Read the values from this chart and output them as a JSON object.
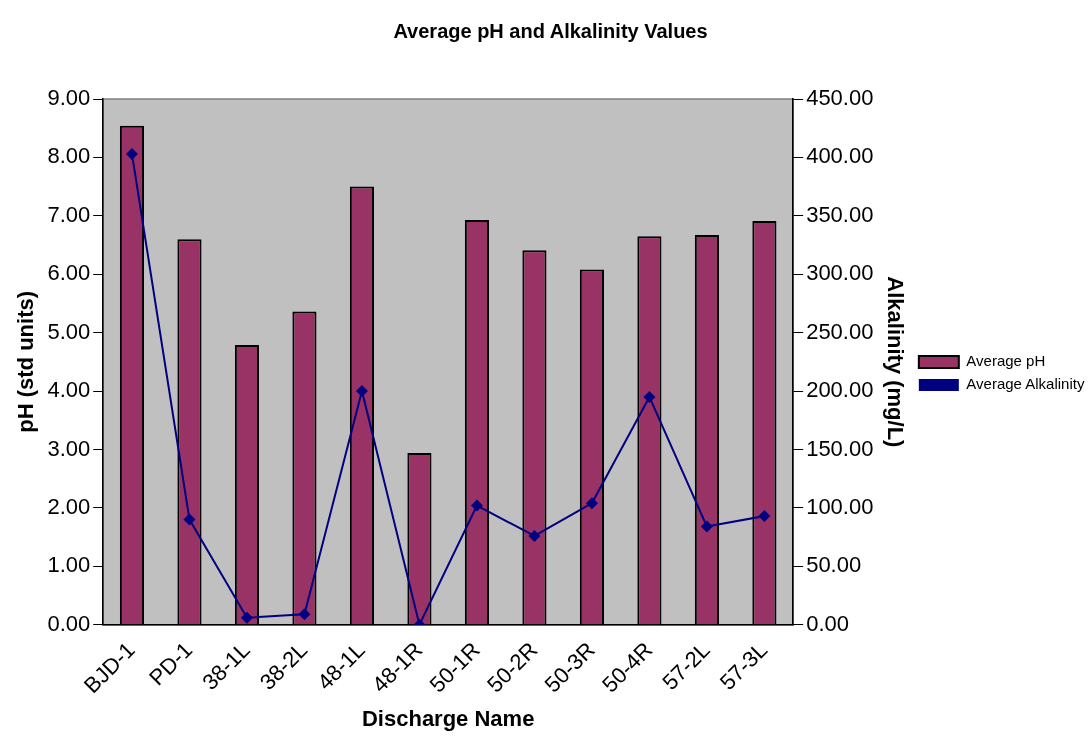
{
  "chart_data": {
    "type": "bar",
    "title": "Average pH and Alkalinity Values",
    "xlabel": "Discharge Name",
    "ylabel": "pH (std units)",
    "y2label": "Alkalinity (mg/L)",
    "categories": [
      "BJD-1",
      "PD-1",
      "38-1L",
      "38-2L",
      "48-1L",
      "48-1R",
      "50-1R",
      "50-2R",
      "50-3R",
      "50-4R",
      "57-2L",
      "57-3L"
    ],
    "series": [
      {
        "name": "Average pH",
        "color": "#993366",
        "values": [
          8.54,
          6.6,
          4.79,
          5.36,
          7.5,
          2.94,
          6.93,
          6.41,
          6.08,
          6.65,
          6.67,
          6.91
        ]
      },
      {
        "name": "Average Alkalinity",
        "type": "line",
        "axis": "y2",
        "color": "#000080",
        "marker": "diamond",
        "values": [
          403,
          90,
          6,
          9,
          200,
          0,
          102,
          76,
          104,
          195,
          84,
          93
        ]
      }
    ],
    "ylim": [
      0,
      9
    ],
    "yticks": [
      {
        "value": 0,
        "label": "0.00"
      },
      {
        "value": 1,
        "label": "1.00"
      },
      {
        "value": 2,
        "label": "2.00"
      },
      {
        "value": 3,
        "label": "3.00"
      },
      {
        "value": 4,
        "label": "4.00"
      },
      {
        "value": 5,
        "label": "5.00"
      },
      {
        "value": 6,
        "label": "6.00"
      },
      {
        "value": 7,
        "label": "7.00"
      },
      {
        "value": 8,
        "label": "8.00"
      },
      {
        "value": 9,
        "label": "9.00"
      }
    ],
    "y2lim": [
      0,
      450
    ],
    "y2ticks": [
      {
        "value": 0,
        "label": "0.00"
      },
      {
        "value": 50,
        "label": "50.00"
      },
      {
        "value": 100,
        "label": "100.00"
      },
      {
        "value": 150,
        "label": "150.00"
      },
      {
        "value": 200,
        "label": "200.00"
      },
      {
        "value": 250,
        "label": "250.00"
      },
      {
        "value": 300,
        "label": "300.00"
      },
      {
        "value": 350,
        "label": "350.00"
      },
      {
        "value": 400,
        "label": "400.00"
      },
      {
        "value": 450,
        "label": "450.00"
      }
    ],
    "grid": false,
    "legend": "right"
  }
}
